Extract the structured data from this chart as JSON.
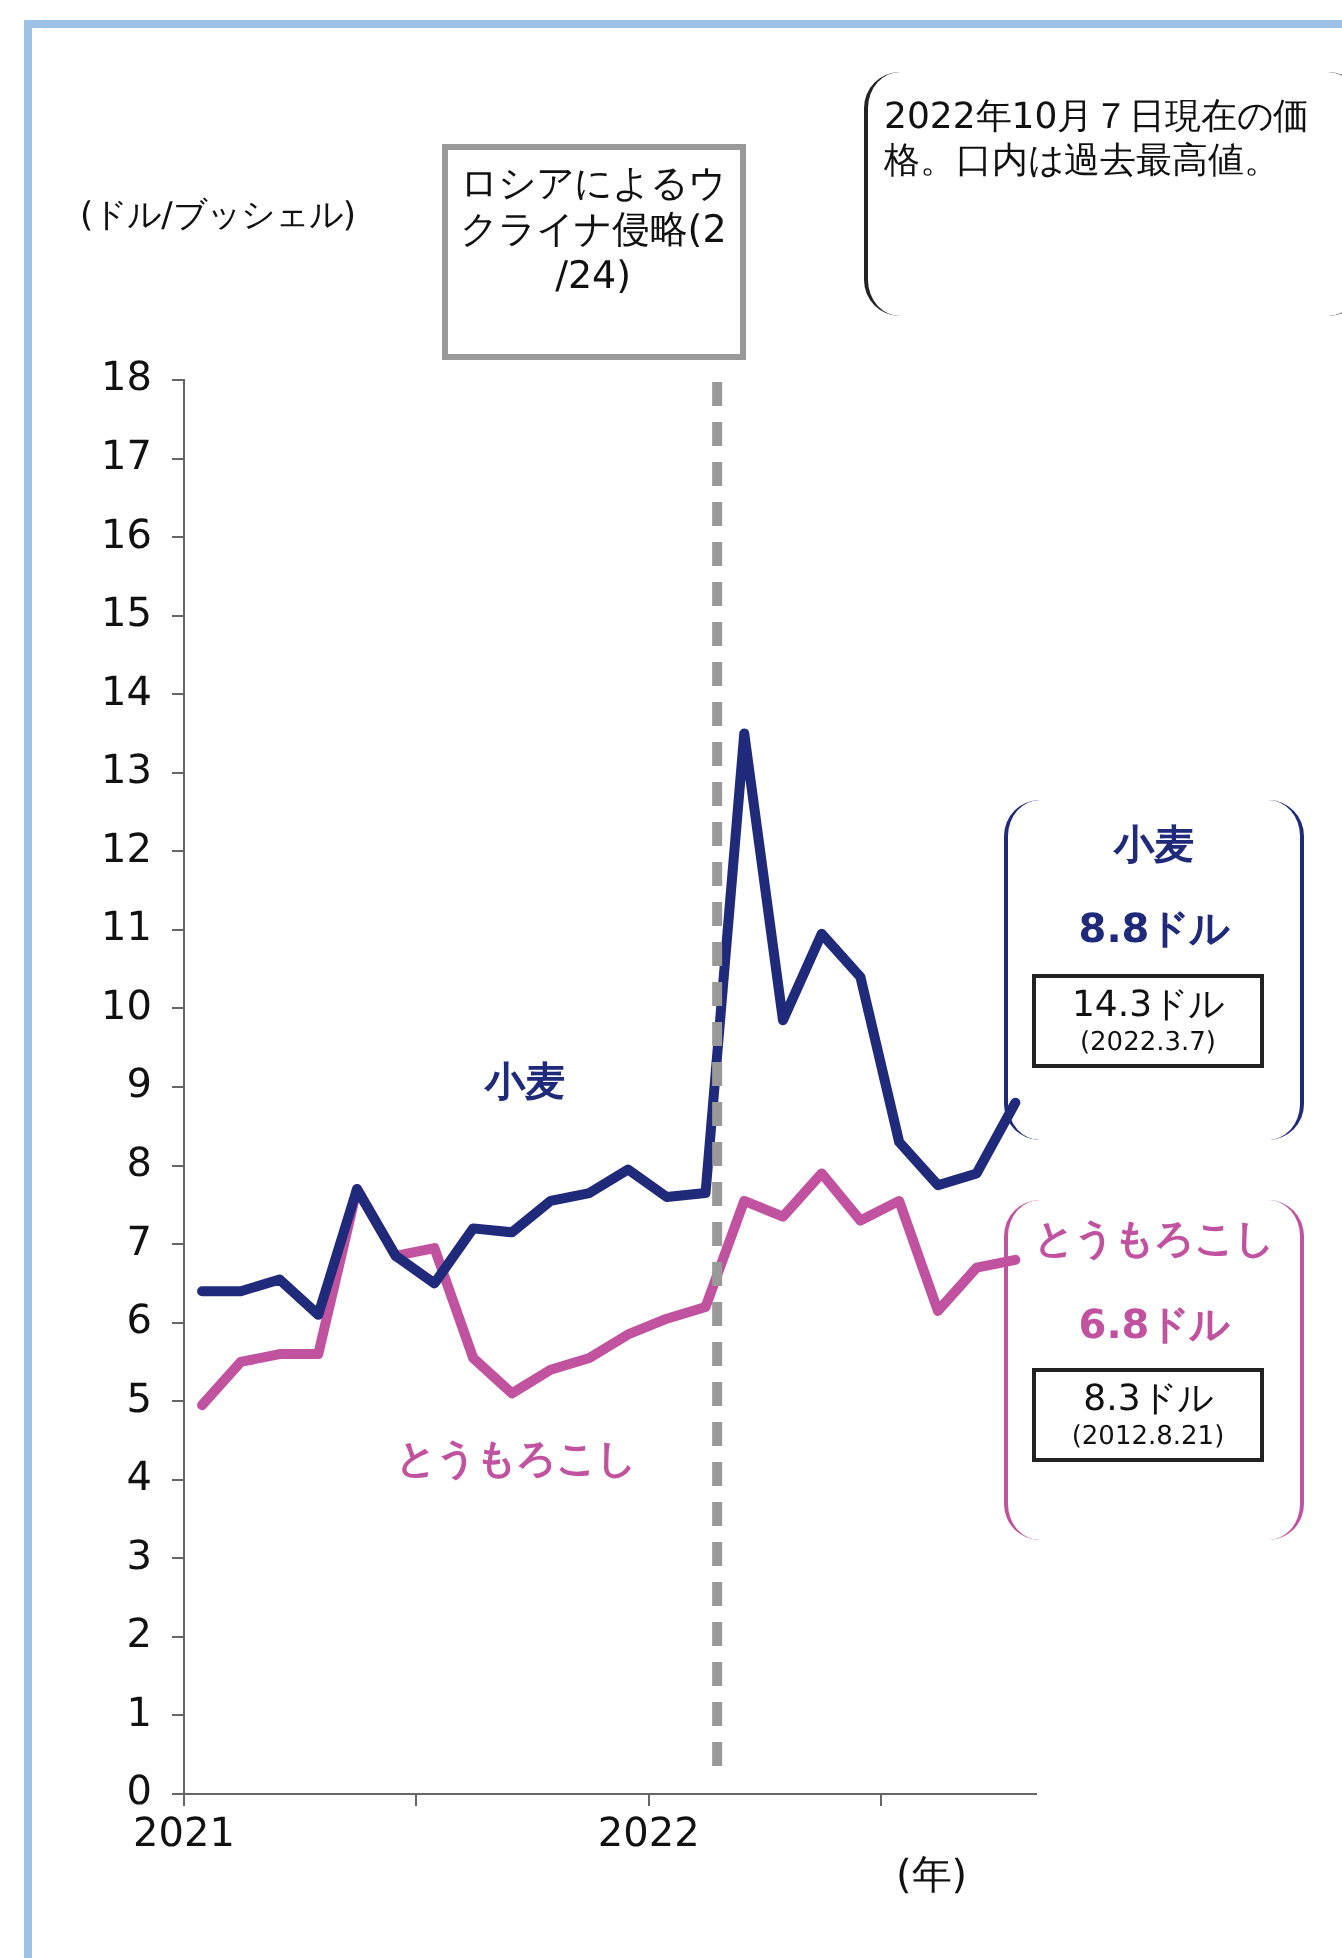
{
  "chart_data": {
    "type": "line",
    "ylabel": "(ドル/ブッシェル)",
    "xlabel": "(年)",
    "x": [
      "2021-01-15",
      "2021-02-15",
      "2021-03-15",
      "2021-04-15",
      "2021-05-15",
      "2021-06-15",
      "2021-07-15",
      "2021-08-15",
      "2021-09-15",
      "2021-10-15",
      "2021-11-15",
      "2021-12-15",
      "2022-01-15",
      "2022-02-15",
      "2022-03-15",
      "2022-04-15",
      "2022-05-15",
      "2022-06-15",
      "2022-07-15",
      "2022-08-15",
      "2022-09-15",
      "2022-10-15"
    ],
    "series": [
      {
        "name": "小麦",
        "color": "#1f2a7a",
        "values": [
          6.4,
          6.4,
          6.55,
          6.1,
          7.7,
          6.85,
          6.5,
          7.2,
          7.15,
          7.55,
          7.65,
          7.95,
          7.6,
          7.65,
          13.5,
          9.85,
          10.95,
          10.4,
          8.3,
          7.75,
          7.9,
          8.8
        ]
      },
      {
        "name": "とうもろこし",
        "color": "#c0529f",
        "values": [
          4.95,
          5.5,
          5.6,
          5.6,
          7.7,
          6.85,
          6.95,
          5.55,
          5.1,
          5.4,
          5.55,
          5.85,
          6.05,
          6.2,
          7.55,
          7.35,
          7.9,
          7.3,
          7.55,
          6.15,
          6.7,
          6.8
        ]
      }
    ],
    "xlim": [
      "2021-01-01",
      "2022-11-01"
    ],
    "xticks": [
      {
        "value": "2021-01-01",
        "label": "2021"
      },
      {
        "value": "2021-07-01",
        "label": null
      },
      {
        "value": "2022-01-01",
        "label": "2022"
      },
      {
        "value": "2022-07-01",
        "label": null
      }
    ],
    "ylim": [
      0,
      18
    ],
    "yticks": [
      0,
      1,
      2,
      3,
      4,
      5,
      6,
      7,
      8,
      9,
      10,
      11,
      12,
      13,
      14,
      15,
      16,
      17,
      18
    ],
    "grid": false,
    "legend": false,
    "marker": "none",
    "line_style": "solid",
    "ref_lines": [
      {
        "axis": "x",
        "value": "2022-02-24",
        "label": "ロシアによるウクライナ侵略(2/24)",
        "color": "#999999",
        "line_style": "dashed"
      }
    ],
    "annotations": [
      "2022年10月７日現在の価格。口内は過去最高値。",
      "8.8ドル",
      "14.3ドル\n(2022.3.7)",
      "6.8ドル",
      "8.3ドル\n(2012.8.21)"
    ]
  }
}
